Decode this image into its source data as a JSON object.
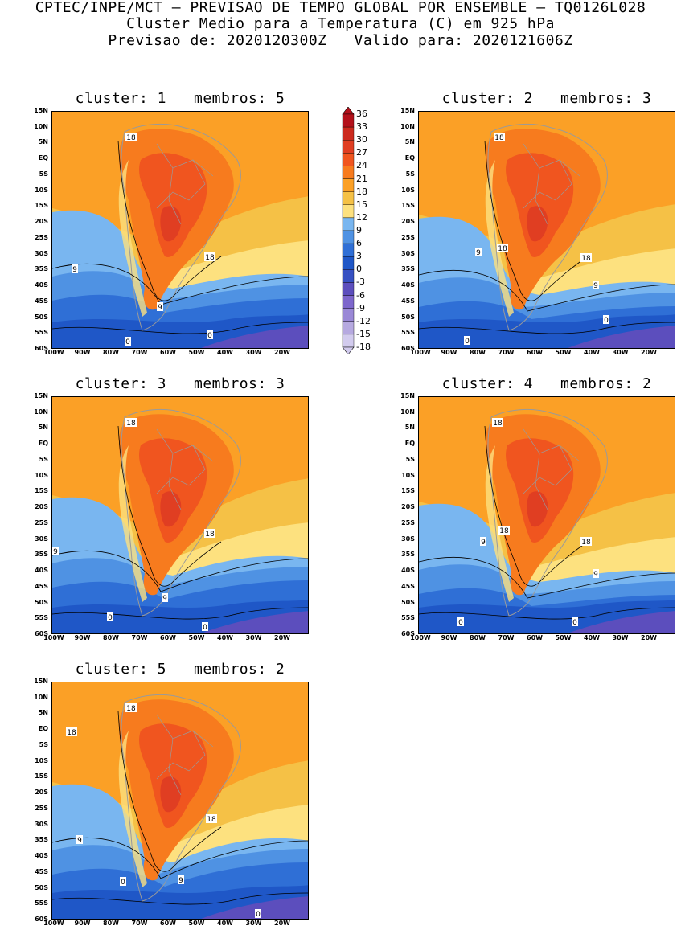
{
  "header": {
    "line1": "CPTEC/INPE/MCT – PREVISAO DE TEMPO GLOBAL POR ENSEMBLE – TQ0126L028",
    "line2": "Cluster Medio para a Temperatura (C) em 925 hPa",
    "line3": "Previsao de: 2020120300Z   Valido para: 2020121606Z"
  },
  "axes": {
    "lat_ticks": [
      "15N",
      "10N",
      "5N",
      "EQ",
      "5S",
      "10S",
      "15S",
      "20S",
      "25S",
      "30S",
      "35S",
      "40S",
      "45S",
      "50S",
      "55S",
      "60S"
    ],
    "lon_ticks": [
      "100W",
      "90W",
      "80W",
      "70W",
      "60W",
      "50W",
      "40W",
      "30W",
      "20W"
    ]
  },
  "colorbar": {
    "labels": [
      "36",
      "33",
      "30",
      "27",
      "24",
      "21",
      "18",
      "15",
      "12",
      "9",
      "6",
      "3",
      "0",
      "-3",
      "-6",
      "-9",
      "-12",
      "-15",
      "-18"
    ],
    "colors": [
      "#b3111b",
      "#cc2a1e",
      "#e03e22",
      "#f0551f",
      "#f77b1e",
      "#fba026",
      "#f5c146",
      "#fde17f",
      "#79b6f0",
      "#4f92e3",
      "#2f6fd6",
      "#1f57c7",
      "#3650c2",
      "#5c4ebd",
      "#7d66cc",
      "#9a88d6",
      "#b6a9e0",
      "#d2cbee"
    ]
  },
  "panels": [
    {
      "title": "cluster: 1   membros: 5",
      "contour_labels": [
        "18",
        "18",
        "9",
        "9",
        "0",
        "0"
      ]
    },
    {
      "title": "cluster: 2   membros: 3",
      "contour_labels": [
        "18",
        "18",
        "18",
        "9",
        "9",
        "0",
        "0"
      ]
    },
    {
      "title": "cluster: 3   membros: 3",
      "contour_labels": [
        "18",
        "18",
        "9",
        "9",
        "0",
        "0"
      ]
    },
    {
      "title": "cluster: 4   membros: 2",
      "contour_labels": [
        "18",
        "18",
        "18",
        "9",
        "9",
        "0",
        "0"
      ]
    },
    {
      "title": "cluster: 5   membros: 2",
      "contour_labels": [
        "18",
        "18",
        "18",
        "9",
        "9",
        "0",
        "0"
      ]
    }
  ]
}
